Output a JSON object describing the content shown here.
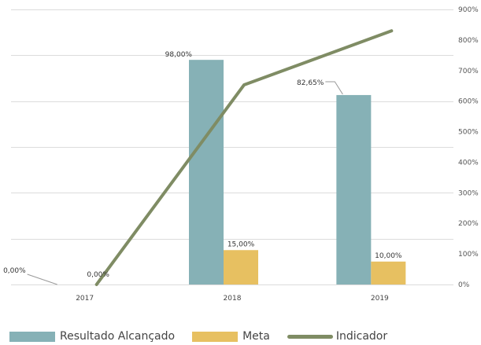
{
  "chart_data": {
    "type": "bar",
    "categories": [
      "2017",
      "2018",
      "2019"
    ],
    "series": [
      {
        "name": "Resultado Alcançado",
        "kind": "bar",
        "axis": "left",
        "color": "#86b1b6",
        "values": [
          0,
          98.0,
          82.65
        ],
        "labels": [
          "0,00%",
          "98,00%",
          "82,65%"
        ]
      },
      {
        "name": "Meta",
        "kind": "bar",
        "axis": "left",
        "color": "#e7c061",
        "values": [
          0,
          15.0,
          10.0
        ],
        "labels": [
          "0,00%",
          "15,00%",
          "10,00%"
        ]
      },
      {
        "name": "Indicador",
        "kind": "line",
        "axis": "right",
        "color": "#7f8c64",
        "values": [
          0,
          653,
          830
        ]
      }
    ],
    "left_axis": {
      "min": 0,
      "max": 120,
      "show_labels": false
    },
    "right_axis": {
      "min": 0,
      "max": 900,
      "ticks": [
        "0%",
        "100%",
        "200%",
        "300%",
        "400%",
        "500%",
        "600%",
        "700%",
        "800%",
        "900%"
      ]
    },
    "grid": true,
    "legend": {
      "position": "bottom-left"
    }
  }
}
